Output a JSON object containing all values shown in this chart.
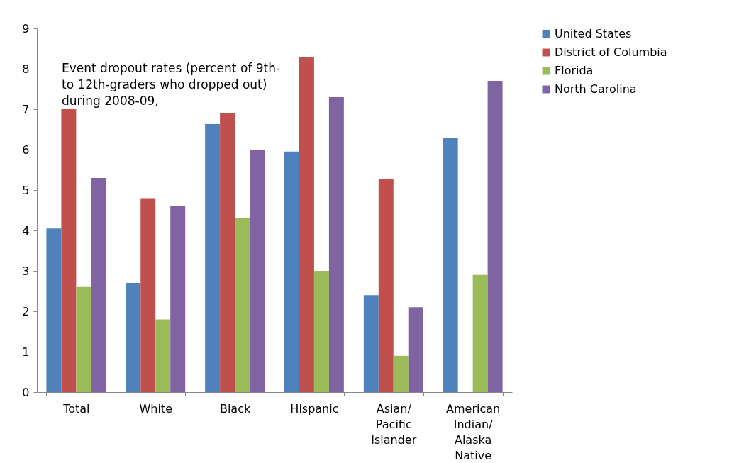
{
  "chart_data": {
    "type": "bar",
    "title": "Event dropout rates (percent of 9th- to 12th-graders who dropped out) during 2008-09,",
    "categories": [
      "Total",
      "White",
      "Black",
      "Hispanic",
      "Asian/Pacific Islander",
      "American Indian/Alaska Native"
    ],
    "series": [
      {
        "name": "United States",
        "color": "#4f81bd",
        "values": [
          4.05,
          2.7,
          6.63,
          5.95,
          2.4,
          6.3
        ]
      },
      {
        "name": "District of Columbia",
        "color": "#c0504d",
        "values": [
          7.0,
          4.8,
          6.9,
          8.3,
          5.28,
          null
        ]
      },
      {
        "name": "Florida",
        "color": "#9bbb59",
        "values": [
          2.6,
          1.8,
          4.3,
          3.0,
          0.9,
          2.9
        ]
      },
      {
        "name": "North Carolina",
        "color": "#8064a2",
        "values": [
          5.3,
          4.6,
          6.0,
          7.3,
          2.1,
          7.7
        ]
      }
    ],
    "ylim": [
      0,
      9
    ],
    "yticks": [
      0,
      1,
      2,
      3,
      4,
      5,
      6,
      7,
      8,
      9
    ],
    "grid": false,
    "legend": "right"
  }
}
